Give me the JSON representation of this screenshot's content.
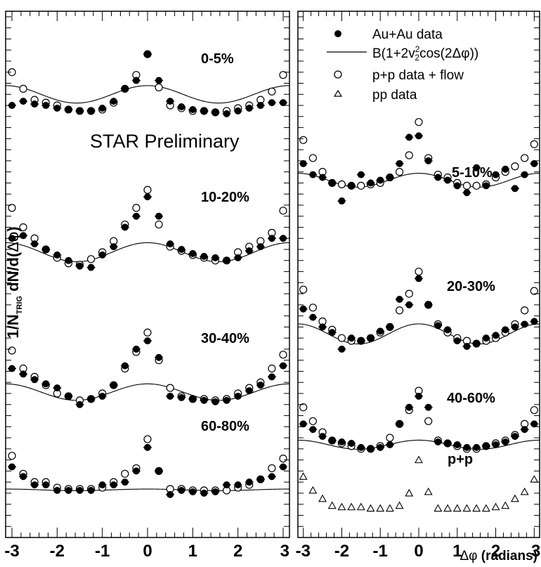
{
  "chart_data": {
    "type": "scatter",
    "ylabel": "1/N_TRIG dN/d(Δφ)",
    "ylabel_parts": {
      "a": "1/N",
      "a_sub": "TRIG",
      "b": " dN/d(",
      "phi": "Δφ",
      "c": ")"
    },
    "xlabel": "Δφ (radians)",
    "xlabel_parts": {
      "phi": "Δφ",
      "rest": " (radians)"
    },
    "annotation": "STAR Preliminary",
    "xlim": [
      -3.14,
      3.14
    ],
    "ylim": [
      -0.1,
      1.8
    ],
    "x_ticks": [
      "-3",
      "-2",
      "-1",
      "0",
      "1",
      "2",
      "3"
    ],
    "y_ticks": [
      "0",
      "0.2",
      "0.4",
      "0.6",
      "0.8",
      "1",
      "1.2",
      "1.4",
      "1.6",
      "1.8"
    ],
    "legend": {
      "placement": "top-right",
      "entries": [
        {
          "marker": "filled-circle",
          "text": "Au+Au data"
        },
        {
          "marker": "line",
          "text_parts": [
            "B(1+2v",
            "2",
            "2",
            "cos(2Δφ))"
          ]
        },
        {
          "marker": "open-circle",
          "text": "p+p data + flow"
        },
        {
          "marker": "open-triangle",
          "text": "pp data"
        }
      ]
    },
    "x": [
      -3.0,
      -2.75,
      -2.5,
      -2.25,
      -2.0,
      -1.75,
      -1.5,
      -1.25,
      -1.0,
      -0.75,
      -0.5,
      -0.25,
      0.0,
      0.25,
      0.5,
      0.75,
      1.0,
      1.25,
      1.5,
      1.75,
      2.0,
      2.25,
      2.5,
      2.75,
      3.0
    ],
    "panels": [
      {
        "name": "left",
        "centralities": [
          {
            "label": "0-5%",
            "B": 1.5,
            "v2sq": 0.0105,
            "auau": [
              1.46,
              1.475,
              1.465,
              1.46,
              1.45,
              1.445,
              1.44,
              1.44,
              1.45,
              1.475,
              1.52,
              1.55,
              1.645,
              1.55,
              1.475,
              1.455,
              1.445,
              1.44,
              1.435,
              1.43,
              1.44,
              1.45,
              1.46,
              1.47,
              1.47
            ],
            "pp_flow": [
              1.58,
              1.52,
              1.48,
              1.47,
              1.46,
              1.445,
              1.44,
              1.44,
              1.445,
              1.47,
              1.52,
              1.57,
              1.645,
              1.525,
              1.46,
              1.45,
              1.44,
              1.44,
              1.435,
              1.44,
              1.45,
              1.46,
              1.48,
              1.51,
              1.57
            ]
          },
          {
            "label": "10-20%",
            "B": 0.93,
            "v2sq": 0.0185,
            "auau": [
              0.98,
              0.99,
              0.96,
              0.94,
              0.92,
              0.9,
              0.88,
              0.875,
              0.92,
              0.95,
              1.02,
              1.06,
              1.13,
              1.06,
              0.96,
              0.94,
              0.925,
              0.915,
              0.91,
              0.9,
              0.91,
              0.935,
              0.95,
              0.98,
              0.98
            ],
            "pp_flow": [
              1.09,
              1.02,
              0.98,
              0.94,
              0.91,
              0.89,
              0.885,
              0.905,
              0.93,
              0.97,
              1.03,
              1.09,
              1.155,
              1.03,
              0.95,
              0.935,
              0.92,
              0.91,
              0.9,
              0.9,
              0.93,
              0.95,
              0.97,
              1.0,
              1.08
            ]
          },
          {
            "label": "30-40%",
            "B": 0.425,
            "v2sq": 0.035,
            "auau": [
              0.51,
              0.49,
              0.47,
              0.455,
              0.44,
              0.41,
              0.38,
              0.4,
              0.41,
              0.45,
              0.52,
              0.58,
              0.61,
              0.55,
              0.41,
              0.405,
              0.4,
              0.395,
              0.39,
              0.395,
              0.41,
              0.43,
              0.45,
              0.48,
              0.52
            ],
            "pp_flow": [
              0.575,
              0.51,
              0.48,
              0.45,
              0.42,
              0.41,
              0.395,
              0.4,
              0.42,
              0.45,
              0.51,
              0.57,
              0.64,
              0.54,
              0.44,
              0.41,
              0.4,
              0.4,
              0.395,
              0.4,
              0.42,
              0.44,
              0.46,
              0.51,
              0.56
            ]
          },
          {
            "label": "60-80%",
            "B": 0.072,
            "v2sq": 0.02,
            "auau": [
              0.155,
              0.12,
              0.09,
              0.09,
              0.07,
              0.07,
              0.07,
              0.07,
              0.09,
              0.09,
              0.1,
              0.14,
              0.225,
              0.14,
              0.055,
              0.07,
              0.065,
              0.06,
              0.065,
              0.09,
              0.09,
              0.1,
              0.11,
              0.12,
              0.155
            ],
            "pp_flow": [
              0.195,
              0.13,
              0.1,
              0.1,
              0.08,
              0.075,
              0.075,
              0.075,
              0.08,
              0.1,
              0.13,
              0.15,
              0.255,
              0.14,
              0.075,
              0.075,
              0.07,
              0.07,
              0.07,
              0.07,
              0.08,
              0.09,
              0.11,
              0.15,
              0.185
            ]
          }
        ]
      },
      {
        "name": "right",
        "centralities": [
          {
            "label": "5-10%",
            "B": 1.19,
            "v2sq": 0.0105,
            "auau": [
              1.25,
              1.21,
              1.2,
              1.18,
              1.115,
              1.17,
              1.21,
              1.18,
              1.19,
              1.2,
              1.25,
              1.345,
              1.35,
              1.26,
              1.2,
              1.19,
              1.17,
              1.145,
              1.235,
              1.17,
              1.21,
              1.23,
              1.16,
              1.21,
              1.25
            ],
            "pp_flow": [
              1.335,
              1.27,
              1.22,
              1.18,
              1.175,
              1.17,
              1.17,
              1.175,
              1.18,
              1.2,
              1.22,
              1.28,
              1.4,
              1.27,
              1.21,
              1.2,
              1.18,
              1.17,
              1.17,
              1.175,
              1.2,
              1.22,
              1.24,
              1.27,
              1.32
            ]
          },
          {
            "label": "20-30%",
            "B": 0.635,
            "v2sq": 0.0285,
            "auau": [
              0.725,
              0.695,
              0.66,
              0.64,
              0.58,
              0.62,
              0.61,
              0.62,
              0.645,
              0.66,
              0.76,
              0.74,
              0.835,
              0.74,
              0.665,
              0.65,
              0.61,
              0.59,
              0.6,
              0.62,
              0.63,
              0.65,
              0.66,
              0.67,
              0.68
            ],
            "pp_flow": [
              0.795,
              0.73,
              0.68,
              0.65,
              0.62,
              0.61,
              0.61,
              0.62,
              0.64,
              0.66,
              0.72,
              0.78,
              0.86,
              0.74,
              0.67,
              0.64,
              0.62,
              0.61,
              0.6,
              0.61,
              0.62,
              0.64,
              0.67,
              0.72,
              0.79
            ]
          },
          {
            "label": "40-60%",
            "B": 0.235,
            "v2sq": 0.035,
            "auau": [
              0.31,
              0.29,
              0.265,
              0.25,
              0.245,
              0.24,
              0.225,
              0.22,
              0.225,
              0.235,
              0.31,
              0.37,
              0.41,
              0.37,
              0.245,
              0.24,
              0.235,
              0.225,
              0.225,
              0.23,
              0.235,
              0.245,
              0.265,
              0.29,
              0.31
            ],
            "pp_flow": [
              0.37,
              0.32,
              0.28,
              0.25,
              0.24,
              0.23,
              0.22,
              0.22,
              0.23,
              0.26,
              0.31,
              0.36,
              0.43,
              0.32,
              0.25,
              0.24,
              0.23,
              0.22,
              0.22,
              0.23,
              0.24,
              0.25,
              0.27,
              0.31,
              0.36
            ]
          },
          {
            "label": "p+p",
            "pp": [
              0.12,
              0.07,
              0.04,
              0.015,
              0.01,
              0.01,
              0.01,
              0.005,
              0.005,
              0.005,
              0.015,
              0.06,
              0.18,
              0.065,
              0.005,
              0.005,
              0.005,
              0.005,
              0.005,
              0.005,
              0.01,
              0.015,
              0.04,
              0.065,
              0.11
            ]
          }
        ]
      }
    ]
  }
}
